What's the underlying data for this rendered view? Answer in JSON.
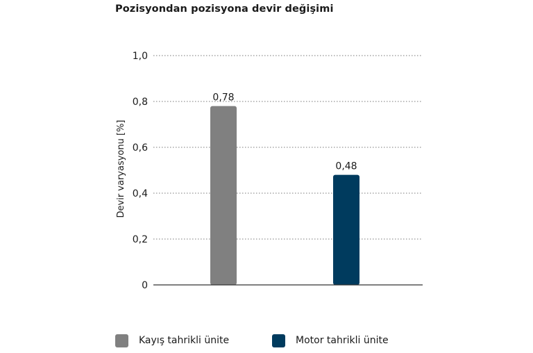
{
  "chart_data": {
    "type": "bar",
    "title": "Pozisyondan pozisyona devir değişimi",
    "xlabel": "",
    "ylabel": "Devir varyasyonu [%]",
    "categories": [
      "Kayış tahrikli ünite",
      "Motor tahrikli ünite"
    ],
    "values": [
      0.78,
      0.48
    ],
    "data_labels": [
      "0,78",
      "0,48"
    ],
    "colors": [
      "#808080",
      "#003b5e"
    ],
    "ylim": [
      0,
      1.0
    ],
    "yticks": [
      0,
      0.2,
      0.4,
      0.6,
      0.8,
      1.0
    ],
    "ytick_labels": [
      "0",
      "0,2",
      "0,4",
      "0,6",
      "0,8",
      "1,0"
    ],
    "grid": true,
    "legend_position": "bottom"
  }
}
